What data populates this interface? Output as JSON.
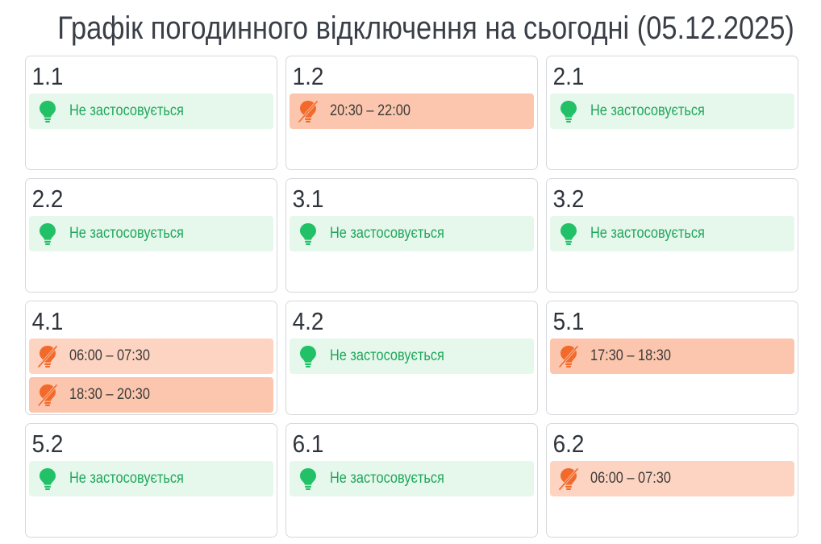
{
  "page": {
    "title": "Графік погодинного відключення на сьогодні (05.12.2025)"
  },
  "colors": {
    "ok_bg": "#e6f7ec",
    "ok_text": "#1ea75a",
    "ok_icon": "#22c167",
    "off_bg": "#fbc6ad",
    "off_icon": "#f26a2b"
  },
  "groups": [
    {
      "label": "1.1",
      "slots": [
        {
          "status": "ok",
          "icon": "lightbulb-on-icon",
          "text": "Не застосовується"
        }
      ]
    },
    {
      "label": "1.2",
      "slots": [
        {
          "status": "off",
          "icon": "lightbulb-off-icon",
          "text": "20:30 – 22:00"
        }
      ]
    },
    {
      "label": "2.1",
      "slots": [
        {
          "status": "ok",
          "icon": "lightbulb-on-icon",
          "text": "Не застосовується"
        }
      ]
    },
    {
      "label": "2.2",
      "slots": [
        {
          "status": "ok",
          "icon": "lightbulb-on-icon",
          "text": "Не застосовується"
        }
      ]
    },
    {
      "label": "3.1",
      "slots": [
        {
          "status": "ok",
          "icon": "lightbulb-on-icon",
          "text": "Не застосовується"
        }
      ]
    },
    {
      "label": "3.2",
      "slots": [
        {
          "status": "ok",
          "icon": "lightbulb-on-icon",
          "text": "Не застосовується"
        }
      ]
    },
    {
      "label": "4.1",
      "slots": [
        {
          "status": "off",
          "icon": "lightbulb-off-icon",
          "text": "06:00 – 07:30",
          "light": true
        },
        {
          "status": "off",
          "icon": "lightbulb-off-icon",
          "text": "18:30 – 20:30"
        }
      ]
    },
    {
      "label": "4.2",
      "slots": [
        {
          "status": "ok",
          "icon": "lightbulb-on-icon",
          "text": "Не застосовується"
        }
      ]
    },
    {
      "label": "5.1",
      "slots": [
        {
          "status": "off",
          "icon": "lightbulb-off-icon",
          "text": "17:30 – 18:30"
        }
      ]
    },
    {
      "label": "5.2",
      "slots": [
        {
          "status": "ok",
          "icon": "lightbulb-on-icon",
          "text": "Не застосовується"
        }
      ]
    },
    {
      "label": "6.1",
      "slots": [
        {
          "status": "ok",
          "icon": "lightbulb-on-icon",
          "text": "Не застосовується"
        }
      ]
    },
    {
      "label": "6.2",
      "slots": [
        {
          "status": "off",
          "icon": "lightbulb-off-icon",
          "text": "06:00 – 07:30",
          "light": true
        }
      ]
    }
  ]
}
